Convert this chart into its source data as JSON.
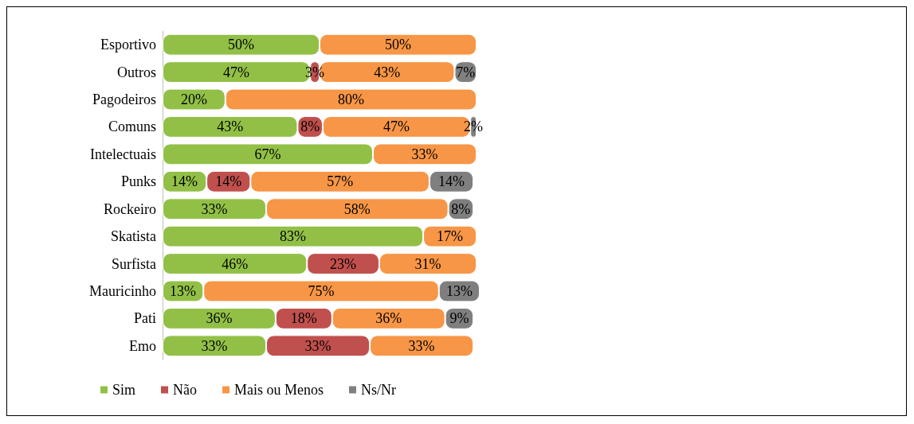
{
  "chart_data": {
    "type": "bar",
    "orientation": "horizontal",
    "stacked": true,
    "legend": "bottom left",
    "xlim": [
      0,
      101
    ],
    "tick_labels": "y",
    "categories": [
      "Esportivo",
      "Outros",
      "Pagodeiros",
      "Comuns",
      "Intelectuais",
      "Punks",
      "Rockeiro",
      "Skatista",
      "Surfista",
      "Mauricinho",
      "Pati",
      "Emo"
    ],
    "series": [
      {
        "name": "Sim",
        "color": "#92c047",
        "values": [
          50,
          47,
          20,
          43,
          67,
          14,
          33,
          83,
          46,
          13,
          36,
          33
        ],
        "value_labels": [
          "50%",
          "47%",
          "20%",
          "43%",
          "67%",
          "14%",
          "33%",
          "83%",
          "46%",
          "13%",
          "36%",
          "33%"
        ]
      },
      {
        "name": "Não",
        "color": "#c0504d",
        "values": [
          null,
          3,
          null,
          8,
          null,
          14,
          null,
          null,
          23,
          null,
          18,
          33
        ],
        "value_labels": [
          null,
          "3%",
          null,
          "8%",
          null,
          "14%",
          null,
          null,
          "23%",
          null,
          "18%",
          "33%"
        ]
      },
      {
        "name": "Mais ou Menos",
        "color": "#f79646",
        "values": [
          50,
          43,
          80,
          47,
          33,
          57,
          58,
          17,
          31,
          75,
          36,
          33
        ],
        "value_labels": [
          "50%",
          "43%",
          "80%",
          "47%",
          "33%",
          "57%",
          "58%",
          "17%",
          "31%",
          "75%",
          "36%",
          "33%"
        ]
      },
      {
        "name": "Ns/Nr",
        "color": "#7f7f7f",
        "values": [
          null,
          7,
          null,
          2,
          null,
          14,
          8,
          null,
          null,
          13,
          9,
          null
        ],
        "value_labels": [
          null,
          "7%",
          null,
          "2%",
          null,
          "14%",
          "8%",
          null,
          null,
          "13%",
          "9%",
          null
        ]
      }
    ]
  }
}
